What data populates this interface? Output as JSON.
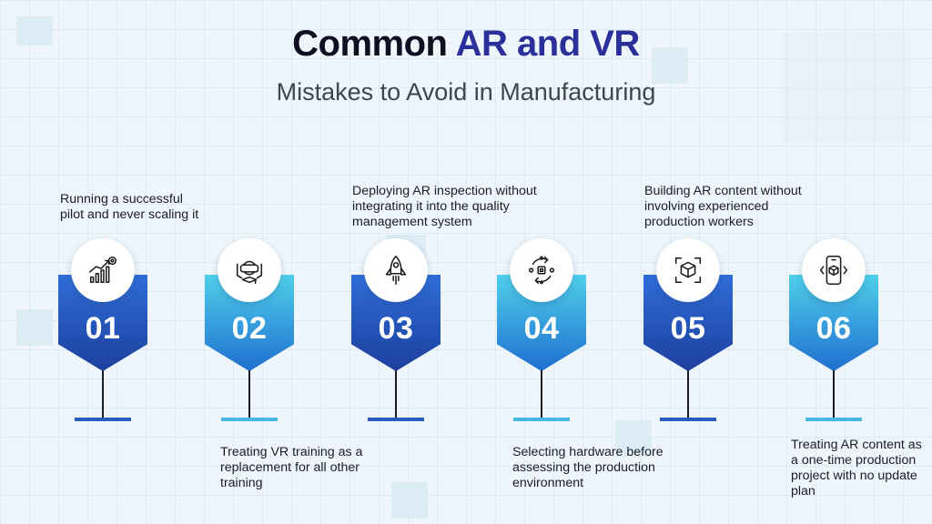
{
  "title": {
    "part1": "Common ",
    "part2": "AR and VR"
  },
  "subtitle": "Mistakes to Avoid in Manufacturing",
  "steps": [
    {
      "number": "01",
      "text": "Running a successful pilot and never scaling it",
      "icon": "growth-chart-gear-icon"
    },
    {
      "number": "02",
      "text": "Treating VR training as a replacement for all other training",
      "icon": "vr-headset-graduate-icon"
    },
    {
      "number": "03",
      "text": "Deploying AR inspection without integrating it into the quality management system",
      "icon": "rocket-icon"
    },
    {
      "number": "04",
      "text": "Selecting hardware before assessing the production environment",
      "icon": "hardware-cycle-icon"
    },
    {
      "number": "05",
      "text": "Building AR content without involving experienced production workers",
      "icon": "ar-cube-scan-icon"
    },
    {
      "number": "06",
      "text": "Treating AR content as a one-time production project with no update plan",
      "icon": "phone-ar-cube-icon"
    }
  ],
  "colors": {
    "dark_pennant": "#1c3f9e",
    "light_pennant": "#4fd0ea",
    "title_accent": "#2b2f9a"
  }
}
